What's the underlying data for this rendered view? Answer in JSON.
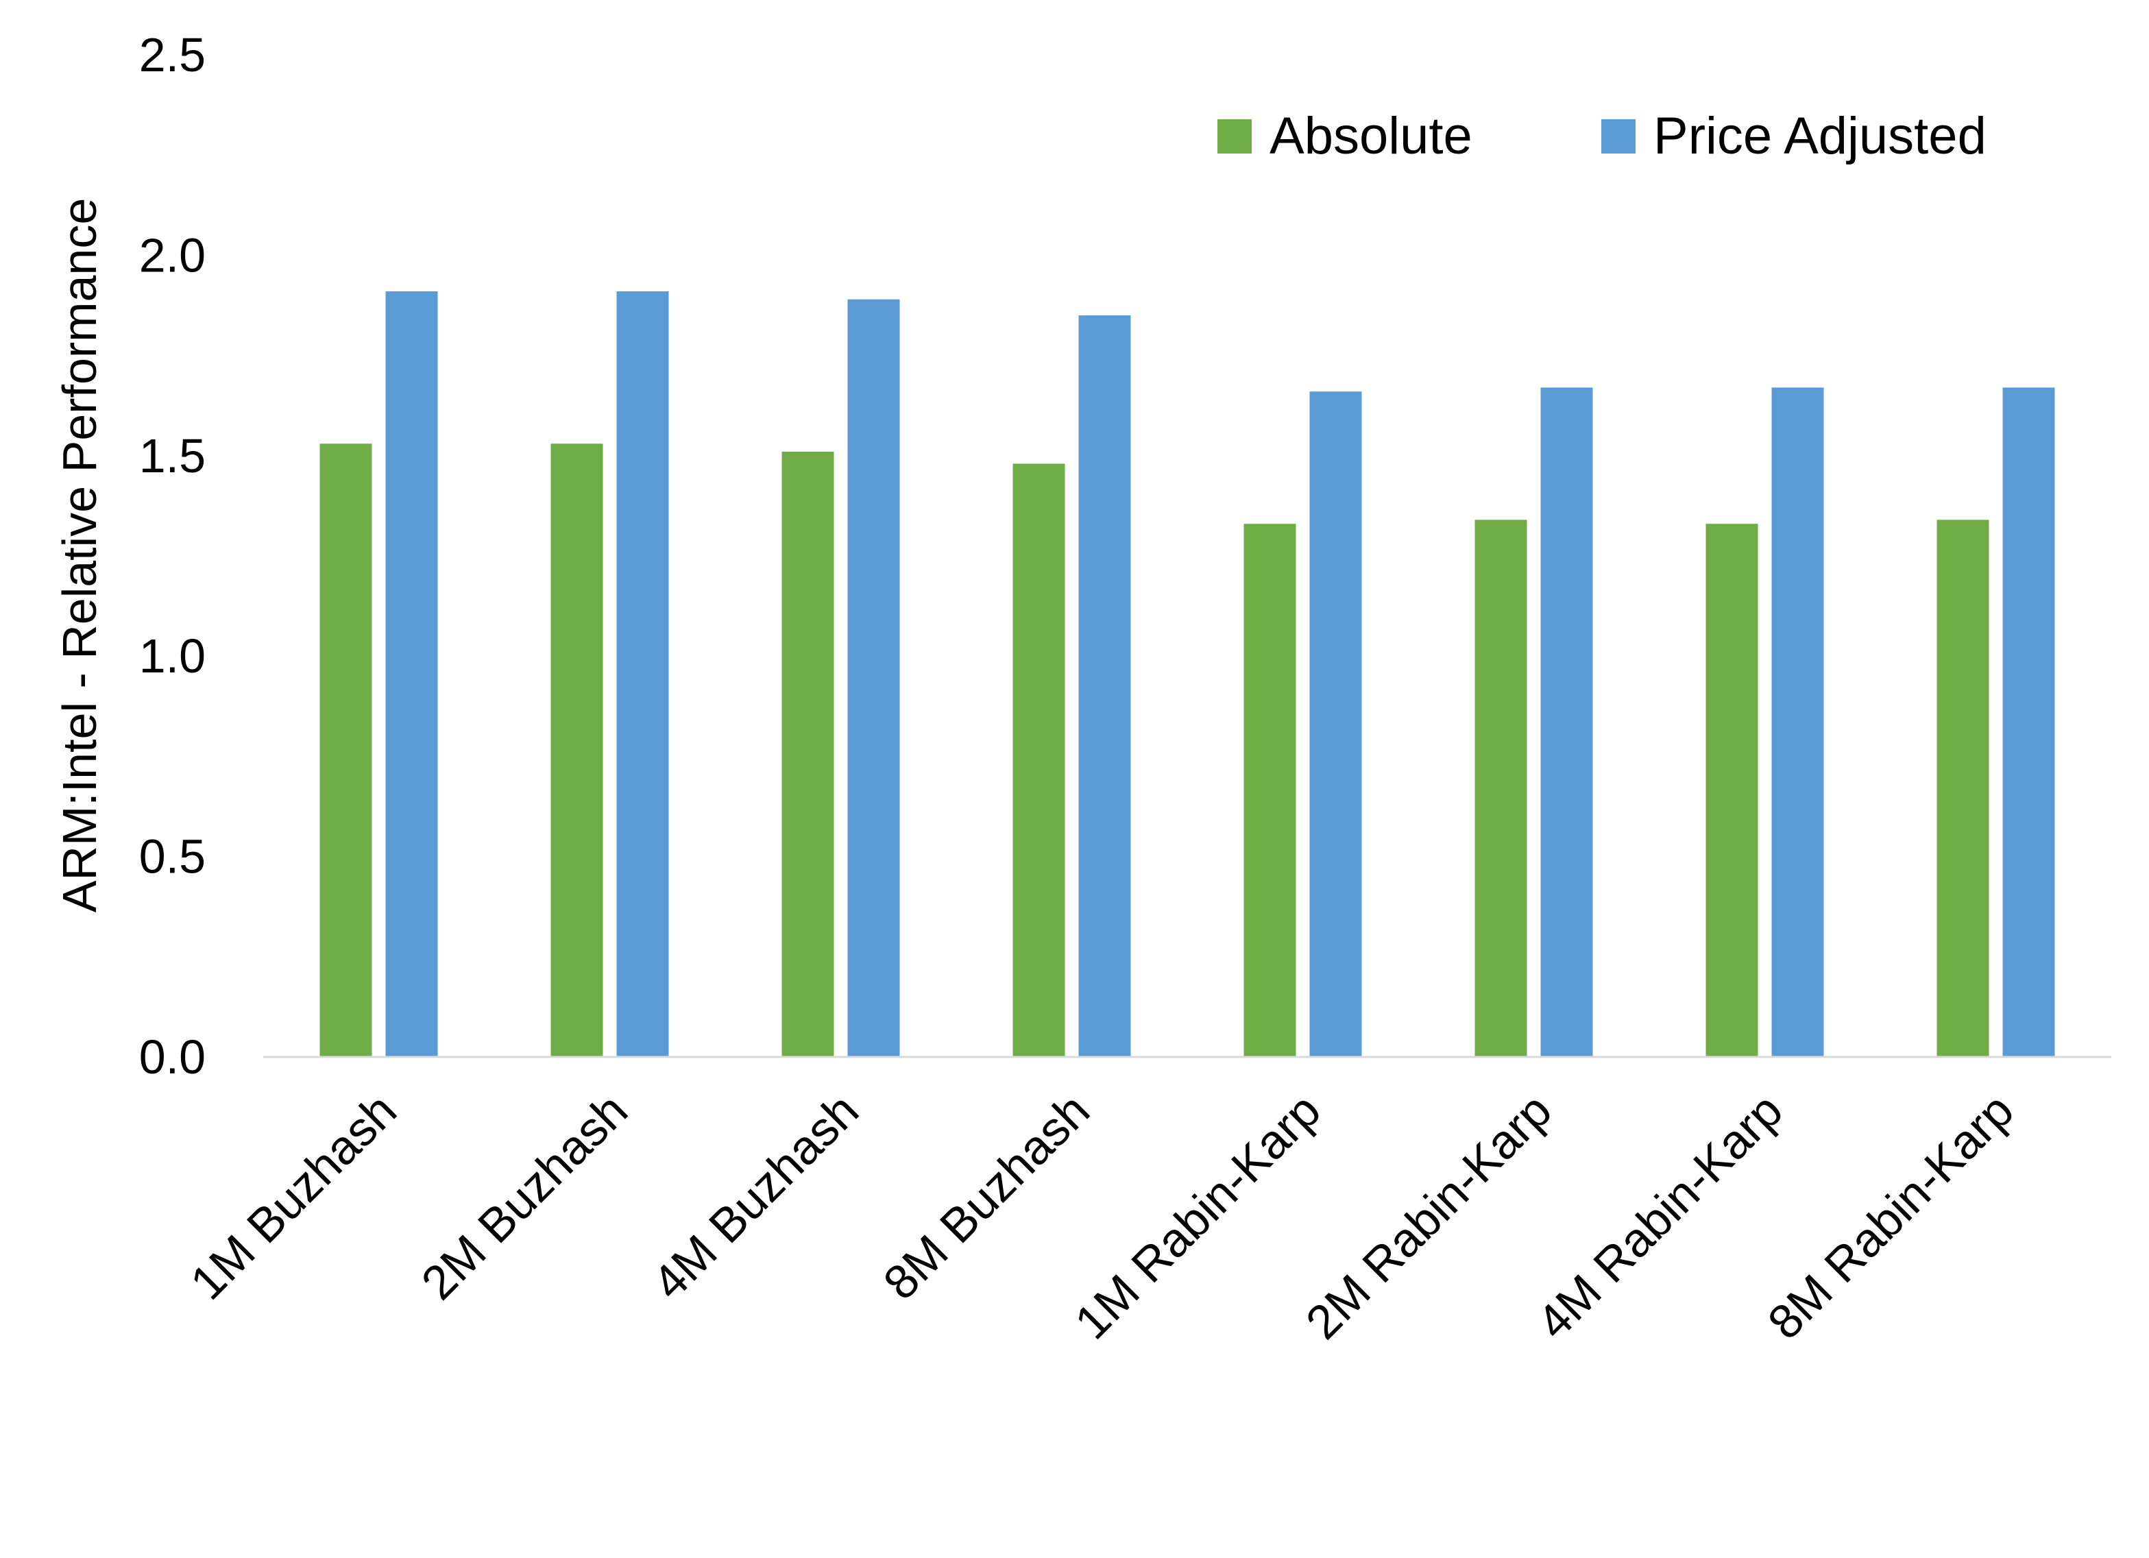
{
  "chart_data": {
    "type": "bar",
    "title": "",
    "xlabel": "",
    "ylabel": "ARM:Intel - Relative Performance",
    "ylim": [
      0,
      2.5
    ],
    "yticks": [
      "0.0",
      "0.5",
      "1.0",
      "1.5",
      "2.0",
      "2.5"
    ],
    "grid": false,
    "legend_position": "top-right",
    "categories": [
      "1M Buzhash",
      "2M Buzhash",
      "4M Buzhash",
      "8M Buzhash",
      "1M Rabin-Karp",
      "2M Rabin-Karp",
      "4M Rabin-Karp",
      "8M Rabin-Karp"
    ],
    "series": [
      {
        "name": "Absolute",
        "color": "#70ad47",
        "values": [
          1.53,
          1.53,
          1.51,
          1.48,
          1.33,
          1.34,
          1.33,
          1.34
        ]
      },
      {
        "name": "Price Adjusted",
        "color": "#5b9bd5",
        "values": [
          1.91,
          1.91,
          1.89,
          1.85,
          1.66,
          1.67,
          1.67,
          1.67
        ]
      }
    ]
  }
}
